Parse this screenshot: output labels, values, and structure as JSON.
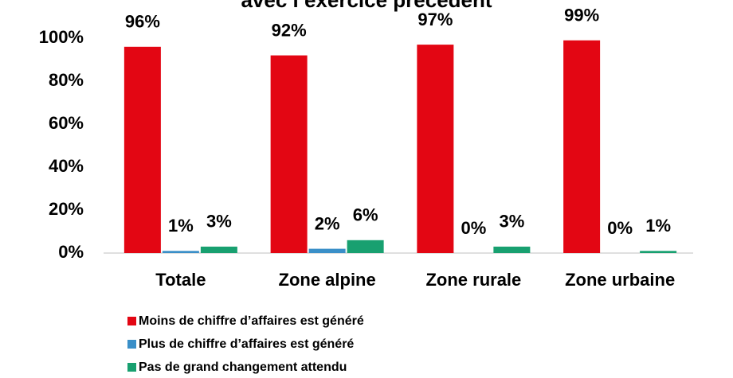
{
  "chart_data": {
    "type": "bar",
    "title": "avec l’exercice précédent",
    "categories": [
      "Totale",
      "Zone alpine",
      "Zone rurale",
      "Zone urbaine"
    ],
    "series": [
      {
        "name": "Moins de chiffre d’affaires est généré",
        "color": "#e30613",
        "values": [
          96,
          92,
          97,
          99
        ],
        "value_labels": [
          "96%",
          "92%",
          "97%",
          "99%"
        ]
      },
      {
        "name": "Plus de chiffre d’affaires est généré",
        "color": "#3a8fc8",
        "values": [
          1,
          2,
          0,
          0
        ],
        "value_labels": [
          "1%",
          "2%",
          "0%",
          "0%"
        ]
      },
      {
        "name": "Pas de grand changement attendu",
        "color": "#18a070",
        "values": [
          3,
          6,
          3,
          1
        ],
        "value_labels": [
          "3%",
          "6%",
          "3%",
          "1%"
        ]
      }
    ],
    "ylim": [
      0,
      100
    ],
    "yticks": [
      {
        "value": 0,
        "label": "0%"
      },
      {
        "value": 20,
        "label": "20%"
      },
      {
        "value": 40,
        "label": "40%"
      },
      {
        "value": 60,
        "label": "60%"
      },
      {
        "value": 80,
        "label": "80%"
      },
      {
        "value": 100,
        "label": "100%"
      }
    ],
    "grid": false,
    "legend": "bottom"
  }
}
